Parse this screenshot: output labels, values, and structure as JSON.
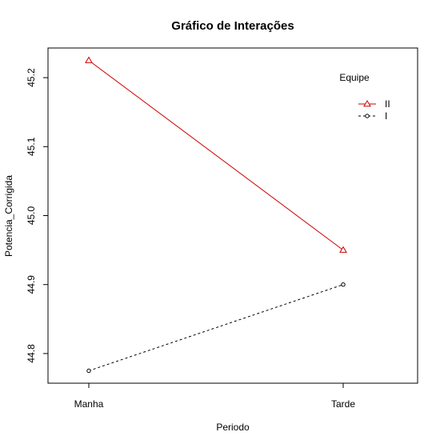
{
  "chart_data": {
    "type": "line",
    "title": "Gráfico de Interações",
    "xlabel": "Periodo",
    "ylabel": "Potencia_Corrigida",
    "categories": [
      "Manha",
      "Tarde"
    ],
    "yticks": [
      "44.8",
      "44.9",
      "45.0",
      "45.1",
      "45.2"
    ],
    "ylim": [
      44.757,
      45.243
    ],
    "grid": false,
    "legend": {
      "title": "Equipe",
      "placement": "top-right"
    },
    "series": [
      {
        "name": "II",
        "values": [
          45.225,
          44.95
        ],
        "color": "#cc0000",
        "line_style": "solid",
        "marker": "triangle"
      },
      {
        "name": "I",
        "values": [
          44.775,
          44.9
        ],
        "color": "#000000",
        "line_style": "dashed",
        "marker": "circle"
      }
    ]
  }
}
